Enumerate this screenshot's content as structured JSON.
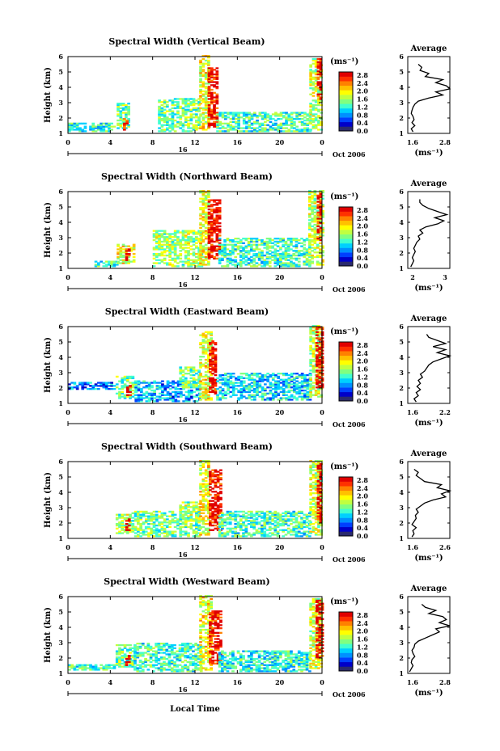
{
  "colors": {
    "scale": [
      "#2a2a6e",
      "#0000c8",
      "#0040ff",
      "#0090ff",
      "#00d0ff",
      "#40ffd0",
      "#80ff80",
      "#c0ff40",
      "#ffff00",
      "#ffc000",
      "#ff8000",
      "#ff3000",
      "#e00000"
    ],
    "outline": "#000000"
  },
  "axes": {
    "ylabel": "Height (km)",
    "x_ticks": [
      "0",
      "4",
      "8",
      "12",
      "16",
      "20",
      "0"
    ],
    "y_ticks": [
      "1",
      "2",
      "3",
      "4",
      "5",
      "6"
    ],
    "date_label": "16",
    "month_label": "Oct 2006",
    "unit_label": "(ms⁻¹)",
    "xlabel": "Local Time",
    "avg_title": "Average",
    "avg_unit": "(ms⁻¹)"
  },
  "chart_data": [
    {
      "type": "heatmap",
      "title": "Spectral Width (Vertical Beam)",
      "xlim": [
        0,
        24
      ],
      "ylim": [
        1,
        6
      ],
      "colorbar_ticks": [
        "2.8",
        "2.4",
        "2.0",
        "1.6",
        "1.2",
        "0.8",
        "0.4",
        "0.0"
      ],
      "colorbar_range": [
        0.0,
        2.8
      ],
      "avg_profile": {
        "type": "line",
        "xlim": [
          1.6,
          2.8
        ],
        "x_ticks": [
          "1.6",
          "2.8"
        ],
        "height": [
          1.1,
          1.3,
          1.5,
          1.7,
          1.9,
          2.1,
          2.3,
          2.5,
          2.7,
          2.9,
          3.1,
          3.3,
          3.5,
          3.7,
          3.9,
          4.1,
          4.3,
          4.5,
          4.7,
          4.9,
          5.1,
          5.3,
          5.5
        ],
        "width": [
          1.75,
          1.7,
          1.8,
          1.72,
          1.78,
          1.75,
          1.7,
          1.72,
          1.75,
          1.8,
          1.9,
          2.2,
          2.6,
          2.4,
          2.8,
          2.7,
          2.4,
          2.6,
          2.1,
          2.2,
          1.95,
          2.0,
          1.9
        ]
      },
      "echoes": [
        {
          "t0": 0.0,
          "t1": 4.4,
          "h0": 1.1,
          "h1": 1.7,
          "level": 0.35
        },
        {
          "t0": 4.6,
          "t1": 5.8,
          "h0": 1.3,
          "h1": 3.0,
          "level": 0.45
        },
        {
          "t0": 5.2,
          "t1": 5.6,
          "h0": 1.2,
          "h1": 2.0,
          "level": 0.95
        },
        {
          "t0": 8.5,
          "t1": 12.5,
          "h0": 1.1,
          "h1": 3.3,
          "level": 0.45
        },
        {
          "t0": 12.4,
          "t1": 13.4,
          "h0": 1.2,
          "h1": 6.0,
          "level": 0.6
        },
        {
          "t0": 13.2,
          "t1": 14.2,
          "h0": 1.4,
          "h1": 5.2,
          "level": 0.95
        },
        {
          "t0": 14.0,
          "t1": 23.0,
          "h0": 1.1,
          "h1": 2.4,
          "level": 0.4
        },
        {
          "t0": 22.8,
          "t1": 24.0,
          "h0": 1.2,
          "h1": 5.8,
          "level": 0.55
        },
        {
          "t0": 23.5,
          "t1": 24.0,
          "h0": 3.2,
          "h1": 5.8,
          "level": 0.95
        }
      ]
    },
    {
      "type": "heatmap",
      "title": "Spectral Width (Northward Beam)",
      "xlim": [
        0,
        24
      ],
      "ylim": [
        1,
        6
      ],
      "colorbar_ticks": [
        "2.8",
        "2.4",
        "2.0",
        "1.6",
        "1.2",
        "0.8",
        "0.4",
        "0.0"
      ],
      "colorbar_range": [
        0.0,
        2.8
      ],
      "avg_profile": {
        "type": "line",
        "xlim": [
          1.6,
          3.0
        ],
        "x_ticks": [
          "2",
          "3"
        ],
        "height": [
          1.1,
          1.3,
          1.5,
          1.7,
          1.9,
          2.1,
          2.3,
          2.5,
          2.7,
          2.9,
          3.1,
          3.3,
          3.5,
          3.7,
          3.9,
          4.1,
          4.3,
          4.5,
          4.7,
          4.9,
          5.1,
          5.3,
          5.5
        ],
        "width": [
          1.7,
          1.75,
          1.8,
          1.75,
          1.8,
          1.85,
          1.8,
          1.85,
          1.9,
          2.0,
          1.95,
          2.1,
          2.0,
          2.2,
          2.6,
          2.8,
          2.5,
          2.9,
          2.6,
          2.3,
          2.1,
          2.0,
          2.0
        ]
      },
      "echoes": [
        {
          "t0": 2.5,
          "t1": 4.6,
          "h0": 1.1,
          "h1": 1.5,
          "level": 0.4
        },
        {
          "t0": 4.6,
          "t1": 6.2,
          "h0": 1.3,
          "h1": 2.6,
          "level": 0.6
        },
        {
          "t0": 5.4,
          "t1": 5.9,
          "h0": 1.5,
          "h1": 2.3,
          "level": 0.95
        },
        {
          "t0": 8.0,
          "t1": 12.6,
          "h0": 1.1,
          "h1": 3.5,
          "level": 0.5
        },
        {
          "t0": 12.4,
          "t1": 13.3,
          "h0": 1.2,
          "h1": 6.0,
          "level": 0.6
        },
        {
          "t0": 13.2,
          "t1": 14.3,
          "h0": 1.6,
          "h1": 5.4,
          "level": 0.95
        },
        {
          "t0": 14.2,
          "t1": 22.8,
          "h0": 1.1,
          "h1": 3.0,
          "level": 0.4
        },
        {
          "t0": 22.7,
          "t1": 24.0,
          "h0": 1.2,
          "h1": 6.0,
          "level": 0.55
        },
        {
          "t0": 23.5,
          "t1": 24.0,
          "h0": 2.8,
          "h1": 5.8,
          "level": 0.95
        }
      ]
    },
    {
      "type": "heatmap",
      "title": "Spectral Width (Eastward Beam)",
      "xlim": [
        0,
        24
      ],
      "ylim": [
        1,
        6
      ],
      "colorbar_ticks": [
        "2.8",
        "2.4",
        "2.0",
        "1.6",
        "1.2",
        "0.8",
        "0.4",
        "0.0"
      ],
      "colorbar_range": [
        0.0,
        2.8
      ],
      "avg_profile": {
        "type": "line",
        "xlim": [
          1.4,
          2.4
        ],
        "x_ticks": [
          "1.6",
          "2.2"
        ],
        "height": [
          1.1,
          1.3,
          1.5,
          1.7,
          1.9,
          2.1,
          2.3,
          2.5,
          2.7,
          2.9,
          3.1,
          3.3,
          3.5,
          3.7,
          3.9,
          4.1,
          4.3,
          4.5,
          4.7,
          4.9,
          5.1,
          5.3,
          5.5
        ],
        "width": [
          1.6,
          1.55,
          1.65,
          1.6,
          1.7,
          1.62,
          1.7,
          1.65,
          1.75,
          1.7,
          1.8,
          1.85,
          1.9,
          2.0,
          2.2,
          2.4,
          2.1,
          2.3,
          2.0,
          2.3,
          2.1,
          1.9,
          1.85
        ]
      },
      "echoes": [
        {
          "t0": 0.0,
          "t1": 4.5,
          "h0": 1.9,
          "h1": 2.4,
          "level": 0.2
        },
        {
          "t0": 4.5,
          "t1": 6.3,
          "h0": 1.3,
          "h1": 2.8,
          "level": 0.45
        },
        {
          "t0": 5.5,
          "t1": 6.0,
          "h0": 1.4,
          "h1": 2.2,
          "level": 0.95
        },
        {
          "t0": 6.3,
          "t1": 12.5,
          "h0": 1.1,
          "h1": 2.5,
          "level": 0.25
        },
        {
          "t0": 10.5,
          "t1": 12.4,
          "h0": 2.0,
          "h1": 3.4,
          "level": 0.45
        },
        {
          "t0": 12.4,
          "t1": 13.5,
          "h0": 1.2,
          "h1": 5.6,
          "level": 0.6
        },
        {
          "t0": 13.3,
          "t1": 14.0,
          "h0": 1.6,
          "h1": 5.0,
          "level": 0.95
        },
        {
          "t0": 14.0,
          "t1": 22.8,
          "h0": 1.2,
          "h1": 3.0,
          "level": 0.3
        },
        {
          "t0": 22.8,
          "t1": 24.0,
          "h0": 1.4,
          "h1": 6.0,
          "level": 0.55
        },
        {
          "t0": 23.4,
          "t1": 24.0,
          "h0": 2.0,
          "h1": 5.9,
          "level": 0.95
        }
      ]
    },
    {
      "type": "heatmap",
      "title": "Spectral Width (Southward Beam)",
      "xlim": [
        0,
        24
      ],
      "ylim": [
        1,
        6
      ],
      "colorbar_ticks": [
        "2.8",
        "2.4",
        "2.0",
        "1.6",
        "1.2",
        "0.8",
        "0.4",
        "0.0"
      ],
      "colorbar_range": [
        0.0,
        2.8
      ],
      "avg_profile": {
        "type": "line",
        "xlim": [
          1.6,
          2.6
        ],
        "x_ticks": [
          "1.6",
          "2.6"
        ],
        "height": [
          1.1,
          1.3,
          1.5,
          1.7,
          1.9,
          2.1,
          2.3,
          2.5,
          2.7,
          2.9,
          3.1,
          3.3,
          3.5,
          3.7,
          3.9,
          4.1,
          4.3,
          4.5,
          4.7,
          4.9,
          5.1,
          5.3,
          5.5
        ],
        "width": [
          1.7,
          1.75,
          1.72,
          1.8,
          1.7,
          1.75,
          1.8,
          1.78,
          1.85,
          1.8,
          1.9,
          2.0,
          2.2,
          2.5,
          2.4,
          2.6,
          2.3,
          2.4,
          2.0,
          1.9,
          1.8,
          1.85,
          1.75
        ]
      },
      "echoes": [
        {
          "t0": 4.5,
          "t1": 6.0,
          "h0": 1.3,
          "h1": 2.6,
          "level": 0.5
        },
        {
          "t0": 5.4,
          "t1": 5.9,
          "h0": 1.5,
          "h1": 2.3,
          "level": 0.95
        },
        {
          "t0": 6.0,
          "t1": 12.5,
          "h0": 1.1,
          "h1": 2.8,
          "level": 0.45
        },
        {
          "t0": 10.5,
          "t1": 12.4,
          "h0": 2.0,
          "h1": 3.4,
          "level": 0.5
        },
        {
          "t0": 12.4,
          "t1": 13.4,
          "h0": 1.2,
          "h1": 6.0,
          "level": 0.6
        },
        {
          "t0": 13.3,
          "t1": 14.4,
          "h0": 1.5,
          "h1": 5.4,
          "level": 0.95
        },
        {
          "t0": 14.2,
          "t1": 22.8,
          "h0": 1.1,
          "h1": 2.8,
          "level": 0.4
        },
        {
          "t0": 22.8,
          "t1": 24.0,
          "h0": 1.2,
          "h1": 6.0,
          "level": 0.55
        },
        {
          "t0": 23.5,
          "t1": 24.0,
          "h0": 2.0,
          "h1": 5.8,
          "level": 0.95
        }
      ]
    },
    {
      "type": "heatmap",
      "title": "Spectral Width (Westward Beam)",
      "xlim": [
        0,
        24
      ],
      "ylim": [
        1,
        6
      ],
      "colorbar_ticks": [
        "2.8",
        "2.4",
        "2.0",
        "1.6",
        "1.2",
        "0.8",
        "0.4",
        "0.0"
      ],
      "colorbar_range": [
        0.0,
        2.8
      ],
      "avg_profile": {
        "type": "line",
        "xlim": [
          1.6,
          2.8
        ],
        "x_ticks": [
          "1.6",
          "2.8"
        ],
        "height": [
          1.1,
          1.3,
          1.5,
          1.7,
          1.9,
          2.1,
          2.3,
          2.5,
          2.7,
          2.9,
          3.1,
          3.3,
          3.5,
          3.7,
          3.9,
          4.1,
          4.3,
          4.5,
          4.7,
          4.9,
          5.1,
          5.3,
          5.5
        ],
        "width": [
          1.65,
          1.7,
          1.75,
          1.7,
          1.72,
          1.8,
          1.75,
          1.72,
          1.78,
          1.8,
          1.9,
          2.1,
          2.3,
          2.5,
          2.4,
          2.8,
          2.5,
          2.7,
          2.6,
          2.2,
          2.4,
          2.1,
          2.0
        ]
      },
      "echoes": [
        {
          "t0": 0.0,
          "t1": 4.5,
          "h0": 1.2,
          "h1": 1.6,
          "level": 0.4
        },
        {
          "t0": 4.5,
          "t1": 6.2,
          "h0": 1.4,
          "h1": 2.9,
          "level": 0.45
        },
        {
          "t0": 5.4,
          "t1": 5.9,
          "h0": 1.5,
          "h1": 2.2,
          "level": 0.95
        },
        {
          "t0": 6.2,
          "t1": 12.5,
          "h0": 1.1,
          "h1": 3.0,
          "level": 0.4
        },
        {
          "t0": 12.4,
          "t1": 13.5,
          "h0": 1.2,
          "h1": 6.0,
          "level": 0.6
        },
        {
          "t0": 13.3,
          "t1": 14.5,
          "h0": 1.6,
          "h1": 5.0,
          "level": 0.95
        },
        {
          "t0": 14.2,
          "t1": 22.8,
          "h0": 1.1,
          "h1": 2.5,
          "level": 0.35
        },
        {
          "t0": 22.8,
          "t1": 24.0,
          "h0": 1.3,
          "h1": 5.8,
          "level": 0.55
        },
        {
          "t0": 23.4,
          "t1": 24.0,
          "h0": 2.0,
          "h1": 5.7,
          "level": 0.95
        }
      ]
    }
  ]
}
